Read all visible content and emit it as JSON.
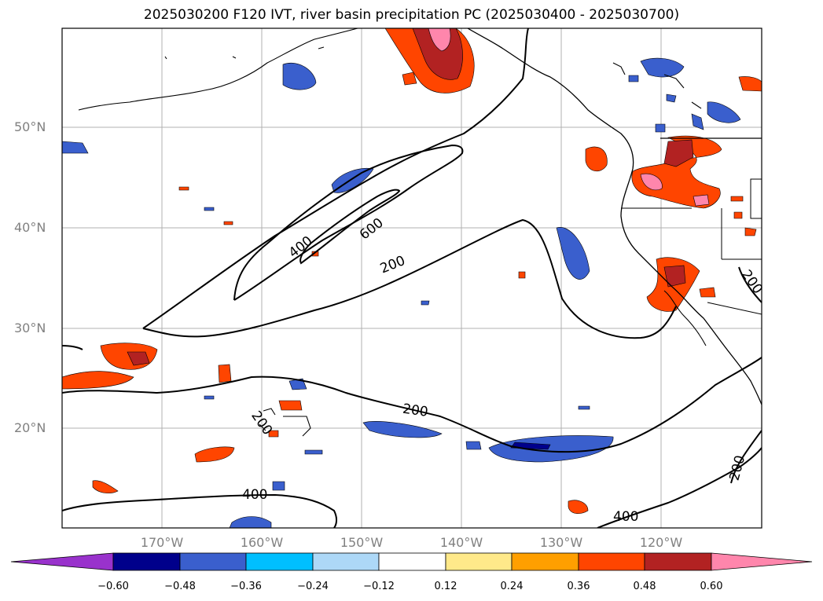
{
  "title": "2025030200 F120 IVT, river basin precipitation PC (2025030400 - 2025030700)",
  "lat_labels": [
    "50°N",
    "40°N",
    "30°N",
    "20°N"
  ],
  "lon_labels": [
    "170°W",
    "160°W",
    "150°W",
    "140°W",
    "130°W",
    "120°W"
  ],
  "contour_labels": [
    "400",
    "600",
    "200",
    "200",
    "200",
    "200",
    "200",
    "400",
    "400"
  ],
  "colorbar": {
    "ticks": [
      "−0.60",
      "−0.48",
      "−0.36",
      "−0.24",
      "−0.12",
      "0.12",
      "0.24",
      "0.36",
      "0.48",
      "0.60"
    ],
    "colors": [
      "#9932cc",
      "#00008b",
      "#3a5fcd",
      "#00bfff",
      "#add8f7",
      "#ffffff",
      "#ffe98a",
      "#ff9f00",
      "#ff4500",
      "#b22222",
      "#ff86ac"
    ]
  }
}
